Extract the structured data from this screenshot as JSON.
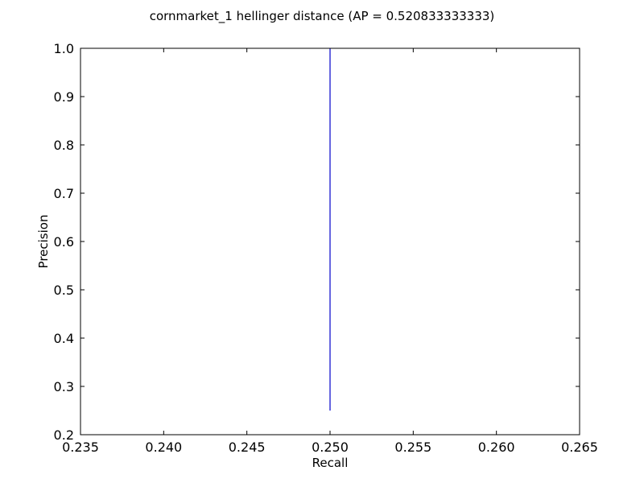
{
  "chart_data": {
    "type": "line",
    "title": "cornmarket_1 hellinger distance  (AP = 0.520833333333)",
    "xlabel": "Recall",
    "ylabel": "Precision",
    "xlim": [
      0.235,
      0.265
    ],
    "ylim": [
      0.2,
      1.0
    ],
    "x_ticks": [
      "0.235",
      "0.240",
      "0.245",
      "0.250",
      "0.255",
      "0.260",
      "0.265"
    ],
    "y_ticks": [
      "0.2",
      "0.3",
      "0.4",
      "0.5",
      "0.6",
      "0.7",
      "0.8",
      "0.9",
      "1.0"
    ],
    "grid": false,
    "series": [
      {
        "color": "#0000cc",
        "x": [
          0.25,
          0.25
        ],
        "y": [
          1.0,
          0.25
        ]
      }
    ]
  }
}
